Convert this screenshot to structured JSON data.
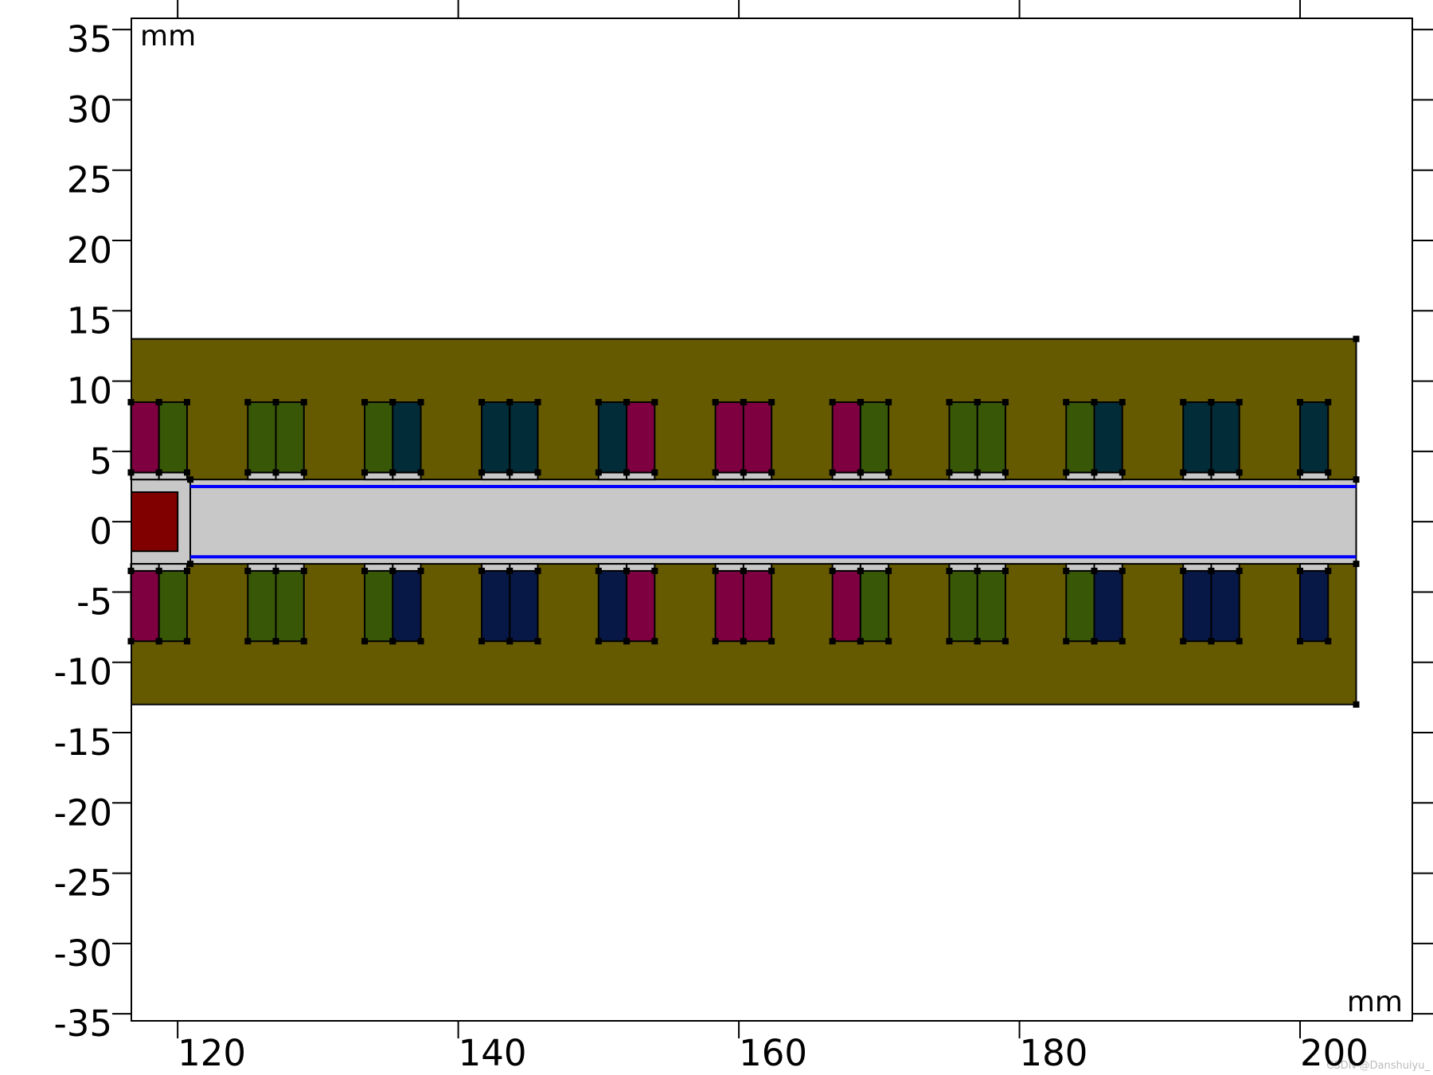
{
  "chart_data": {
    "type": "geometry",
    "x_unit": "mm",
    "y_unit": "mm",
    "xlim": [
      116.7,
      208.0
    ],
    "ylim": [
      -35.5,
      35.8
    ],
    "xticks": [
      120,
      140,
      160,
      180,
      200
    ],
    "yticks": [
      -35,
      -30,
      -25,
      -20,
      -15,
      -10,
      -5,
      0,
      5,
      10,
      15,
      20,
      25,
      30,
      35
    ],
    "yoke": {
      "x": [
        116.7,
        204
      ],
      "y": [
        -13,
        13
      ],
      "color": "#665a00"
    },
    "tube": {
      "x": [
        120.9,
        204
      ],
      "y": [
        -3,
        3
      ],
      "color": "#c8c8c8"
    },
    "left_sleeve": {
      "x": [
        116.7,
        120.9
      ],
      "y": [
        -3,
        3
      ],
      "color": "#c8c8c8"
    },
    "magnet": {
      "x": [
        116.7,
        120
      ],
      "y": [
        -2.1,
        2.1
      ],
      "color": "#800000"
    },
    "bore_lines": {
      "x": [
        120.9,
        204
      ],
      "y": [
        -2.5,
        2.5
      ],
      "color": "#0000ff"
    },
    "coils": {
      "x": [
        116.67,
        118.67,
        125,
        127,
        133.33,
        135.33,
        141.67,
        143.67,
        150,
        152,
        158.33,
        160.33,
        166.67,
        168.67,
        175,
        177,
        183.33,
        185.33,
        191.67,
        193.67,
        200
      ],
      "width": 2,
      "top_y": [
        3.5,
        8.5
      ],
      "bottom_y": [
        -8.5,
        -3.5
      ],
      "spacer_top_y": [
        3,
        3.5
      ],
      "spacer_bottom_y": [
        -3.5,
        -3
      ],
      "spacer_color": "#c8c8c8",
      "top_colors": [
        "#7f0040",
        "#385808",
        "#385808",
        "#385808",
        "#385808",
        "#022c38",
        "#022c38",
        "#022c38",
        "#022c38",
        "#7f0040",
        "#7f0040",
        "#7f0040",
        "#7f0040",
        "#385808",
        "#385808",
        "#385808",
        "#385808",
        "#022c38",
        "#022c38",
        "#022c38",
        "#022c38"
      ],
      "bottom_colors": [
        "#7f0040",
        "#385808",
        "#385808",
        "#385808",
        "#385808",
        "#081846",
        "#081846",
        "#081846",
        "#081846",
        "#7f0040",
        "#7f0040",
        "#7f0040",
        "#7f0040",
        "#385808",
        "#385808",
        "#385808",
        "#385808",
        "#081846",
        "#081846",
        "#081846",
        "#081846"
      ]
    },
    "watermark": "CSDN @Danshuiyu_"
  }
}
